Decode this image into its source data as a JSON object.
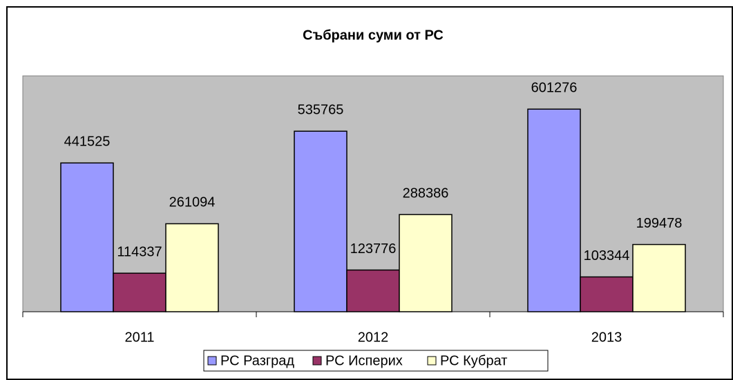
{
  "chart_data": {
    "type": "bar",
    "title": "Събрани суми от РС",
    "categories": [
      "2011",
      "2012",
      "2013"
    ],
    "series": [
      {
        "name": "РС Разград",
        "color": "#9999ff",
        "values": [
          441525,
          535765,
          601276
        ]
      },
      {
        "name": "РС Исперих",
        "color": "#993366",
        "values": [
          114337,
          123776,
          103344
        ]
      },
      {
        "name": "РС Кубрат",
        "color": "#ffffcc",
        "values": [
          261094,
          288386,
          199478
        ]
      }
    ],
    "ylim": [
      0,
      700000
    ],
    "legend": "bottom"
  }
}
